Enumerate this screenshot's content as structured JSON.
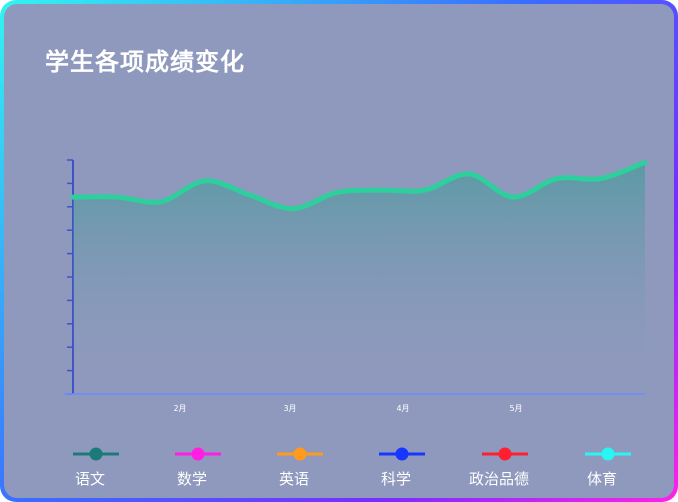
{
  "title": "学生各项成绩变化",
  "colors": {
    "axis": "#3f52c9",
    "xaxis": "#6f8bff",
    "line": "#2dcf9c",
    "area_top": "#2f9a90",
    "active_legend_text": "#2c8fd6"
  },
  "chart_data": {
    "type": "area",
    "x_tick_labels": [
      "2月",
      "3月",
      "4月",
      "5月"
    ],
    "ylim": [
      0,
      100
    ],
    "grid": false,
    "legend_position": "bottom",
    "series": [
      {
        "name": "语文",
        "color": "#1c7b7a",
        "values": [
          85,
          85,
          83,
          92,
          86,
          80,
          87,
          88,
          88,
          95,
          85,
          93,
          93,
          100
        ],
        "visible": true
      },
      {
        "name": "数学",
        "color": "#ff1fe2",
        "visible": false
      },
      {
        "name": "英语",
        "color": "#ff9a1f",
        "visible": false
      },
      {
        "name": "科学",
        "color": "#1736ff",
        "visible": false
      },
      {
        "name": "政治品德",
        "color": "#ff1f2e",
        "visible": false
      },
      {
        "name": "体育",
        "color": "#29f5f2",
        "visible": false
      }
    ]
  }
}
